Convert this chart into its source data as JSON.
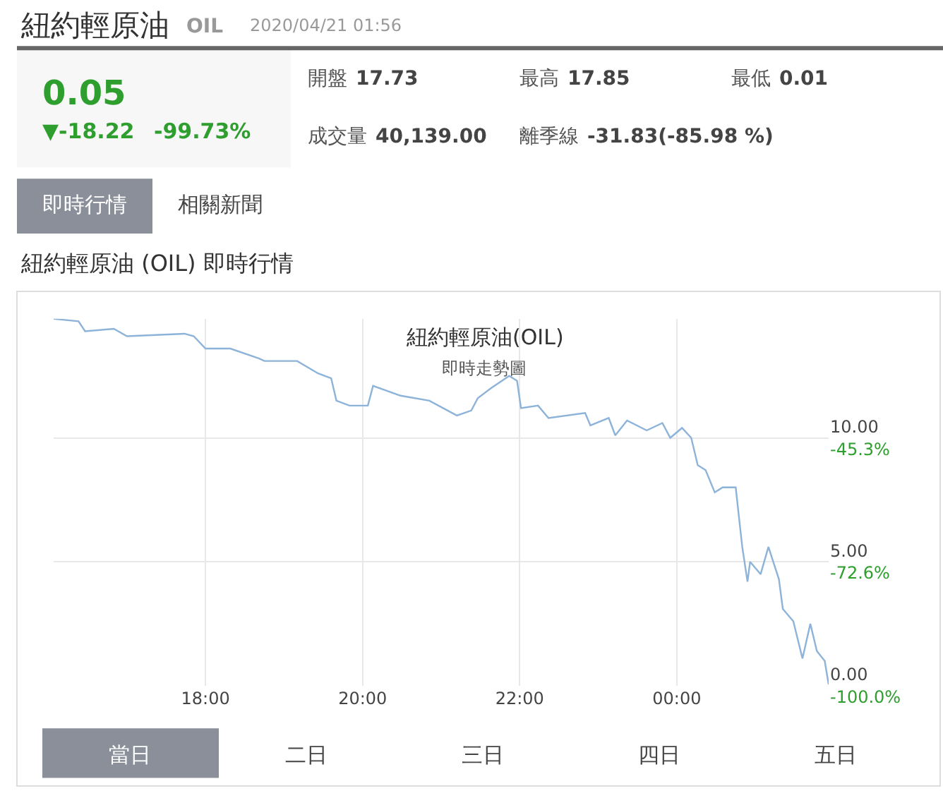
{
  "chart_data": [
    {
      "type": "other",
      "title": "紐約輕原油",
      "subtitle": "OIL",
      "annotations": [
        "2020/04/21 01:56",
        "0.05",
        "▼-18.22",
        "-99.73%",
        "開盤",
        "17.73",
        "最高",
        "17.85",
        "最低",
        "0.01",
        "成交量",
        "40,139.00",
        "離季線",
        "-31.83(-85.98 %)",
        "即時行情",
        "相關新聞",
        "紐約輕原油 (OIL) 即時行情",
        "當日",
        "二日",
        "三日",
        "四日",
        "五日"
      ]
    },
    {
      "type": "line",
      "title": "紐約輕原油(OIL)",
      "subtitle": "即時走勢圖",
      "color": "#8db3d9",
      "grid": true,
      "marker": "none",
      "line_style": "solid",
      "x": [
        "2020-04-20T16:04",
        "2020-04-20T16:23",
        "2020-04-20T16:28",
        "2020-04-20T16:50",
        "2020-04-20T17:00",
        "2020-04-20T17:44",
        "2020-04-20T17:51",
        "2020-04-20T18:00",
        "2020-04-20T18:19",
        "2020-04-20T18:41",
        "2020-04-20T18:45",
        "2020-04-20T19:10",
        "2020-04-20T19:26",
        "2020-04-20T19:36",
        "2020-04-20T19:40",
        "2020-04-20T19:50",
        "2020-04-20T20:04",
        "2020-04-20T20:08",
        "2020-04-20T20:29",
        "2020-04-20T20:51",
        "2020-04-20T21:12",
        "2020-04-20T21:23",
        "2020-04-20T21:28",
        "2020-04-20T21:38",
        "2020-04-20T21:52",
        "2020-04-20T21:55",
        "2020-04-20T21:58",
        "2020-04-20T22:01",
        "2020-04-20T22:14",
        "2020-04-20T22:22",
        "2020-04-20T22:50",
        "2020-04-20T22:54",
        "2020-04-20T23:08",
        "2020-04-20T23:13",
        "2020-04-20T23:22",
        "2020-04-20T23:37",
        "2020-04-20T23:49",
        "2020-04-20T23:55",
        "2020-04-21T00:04",
        "2020-04-21T00:11",
        "2020-04-21T00:16",
        "2020-04-21T00:22",
        "2020-04-21T00:29",
        "2020-04-21T00:35",
        "2020-04-21T00:45",
        "2020-04-21T00:50",
        "2020-04-21T00:54",
        "2020-04-21T00:56",
        "2020-04-21T01:04",
        "2020-04-21T01:10",
        "2020-04-21T01:18",
        "2020-04-21T01:21",
        "2020-04-21T01:29",
        "2020-04-21T01:36",
        "2020-04-21T01:42",
        "2020-04-21T01:47",
        "2020-04-21T01:53",
        "2020-04-21T01:56"
      ],
      "values": [
        14.8,
        14.7,
        14.3,
        14.4,
        14.1,
        14.2,
        14.1,
        13.6,
        13.6,
        13.2,
        13.1,
        13.1,
        12.6,
        12.4,
        11.5,
        11.3,
        11.3,
        12.1,
        11.7,
        11.5,
        10.9,
        11.1,
        11.6,
        12.0,
        12.5,
        12.4,
        12.3,
        11.2,
        11.3,
        10.8,
        11.0,
        10.5,
        10.8,
        10.1,
        10.7,
        10.3,
        10.6,
        10.0,
        10.4,
        10.0,
        8.9,
        8.7,
        7.8,
        8.0,
        8.0,
        5.6,
        4.2,
        5.0,
        4.5,
        5.6,
        4.3,
        3.1,
        2.6,
        1.1,
        2.5,
        1.4,
        1.0,
        0.05
      ],
      "xlim": [
        "2020-04-20T16:04",
        "2020-04-21T01:56"
      ],
      "xticks": [
        {
          "value": "2020-04-20T18:00",
          "label": "18:00"
        },
        {
          "value": "2020-04-20T20:00",
          "label": "20:00"
        },
        {
          "value": "2020-04-20T22:00",
          "label": "22:00"
        },
        {
          "value": "2020-04-21T00:00",
          "label": "00:00"
        }
      ],
      "ylim": [
        0,
        14.8
      ],
      "yticks": [
        {
          "value": 0,
          "label": "0.00"
        },
        {
          "value": 5,
          "label": "5.00"
        },
        {
          "value": 10,
          "label": "10.00"
        }
      ],
      "y2lim": [
        -100,
        -19.0
      ],
      "y2ticks": [
        {
          "value": -100,
          "label": "-100.0%"
        },
        {
          "value": -72.6,
          "label": "-72.6%"
        },
        {
          "value": -45.3,
          "label": "-45.3%"
        }
      ]
    }
  ]
}
